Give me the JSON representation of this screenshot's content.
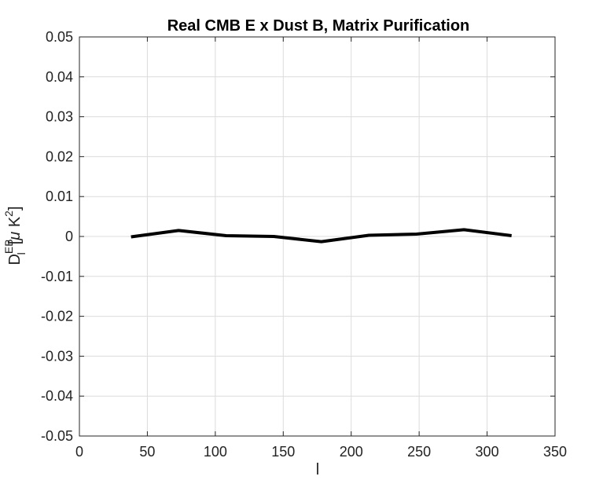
{
  "chart_data": {
    "type": "line",
    "title": "Real CMB E x Dust B, Matrix Purification",
    "xlabel": "l",
    "ylabel": {
      "main": "D",
      "superscript": "EB",
      "subscript": "l",
      "unit_open": "[",
      "unit_mu": "μ",
      "unit_k": " K",
      "unit_power": "2",
      "unit_close": "]"
    },
    "xlim": [
      0,
      350
    ],
    "ylim": [
      -0.05,
      0.05
    ],
    "xticks": [
      0,
      50,
      100,
      150,
      200,
      250,
      300,
      350
    ],
    "xtick_labels": [
      "0",
      "50",
      "100",
      "150",
      "200",
      "250",
      "300",
      "350"
    ],
    "yticks": [
      -0.05,
      -0.04,
      -0.03,
      -0.02,
      -0.01,
      0,
      0.01,
      0.02,
      0.03,
      0.04,
      0.05
    ],
    "ytick_labels": [
      "-0.05",
      "-0.04",
      "-0.03",
      "-0.02",
      "-0.01",
      "0",
      "0.01",
      "0.02",
      "0.03",
      "0.04",
      "0.05"
    ],
    "grid": true,
    "series": [
      {
        "color": "#000000",
        "x": [
          38,
          73,
          108,
          143,
          178,
          213,
          248,
          283,
          318
        ],
        "y": [
          -0.0001,
          0.0015,
          0.0002,
          0.0,
          -0.0013,
          0.0003,
          0.0006,
          0.0017,
          0.0002
        ]
      }
    ]
  }
}
